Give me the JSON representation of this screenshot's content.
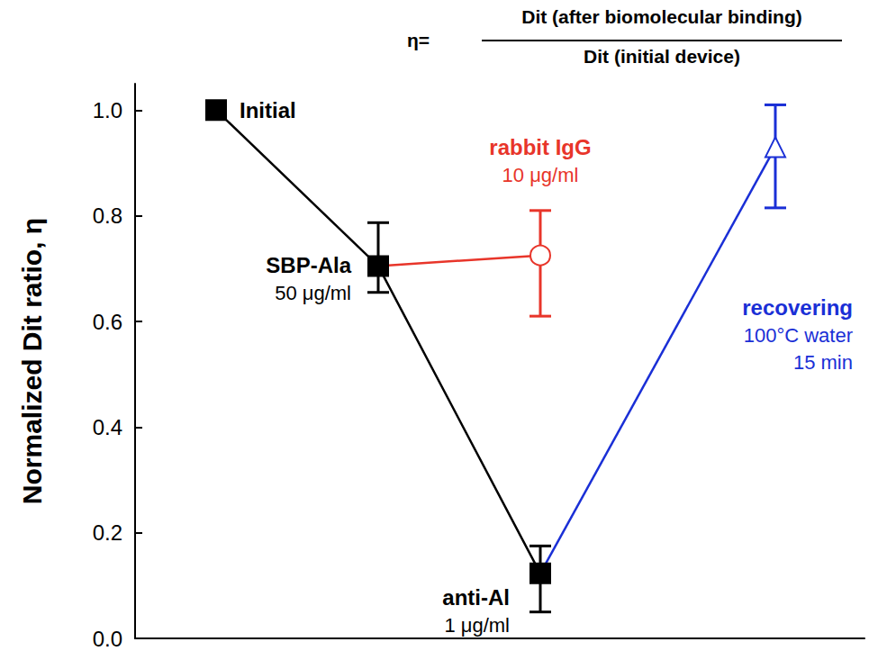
{
  "chart_data": {
    "type": "line",
    "formula": {
      "left": "η=",
      "numerator": "Dit (after biomolecular binding)",
      "denominator": "Dit (initial device)"
    },
    "y_label": "Normalized Dit ratio, η",
    "xlim": [
      0.5,
      5
    ],
    "ylim": [
      0,
      1.05
    ],
    "yticks": [
      {
        "value": 0,
        "label": "0.0"
      },
      0.2,
      0.4,
      0.6,
      0.8,
      {
        "value": 1,
        "label": "1.0"
      }
    ],
    "tick_labels": "y",
    "grid": false,
    "series": [
      {
        "color": "#e8352a",
        "marker": "open_circle",
        "line_style": "solid",
        "x": [
          2,
          3
        ],
        "values": [
          0.705,
          0.725
        ],
        "error_low": [
          null,
          0.61
        ],
        "error_high": [
          null,
          0.81
        ],
        "point_labels": [
          null,
          "rabbit IgG\n10 μg/ml"
        ]
      },
      {
        "color": "#1a2fd6",
        "marker": "open_triangle",
        "line_style": "solid",
        "x": [
          3,
          4.45
        ],
        "values": [
          0.123,
          0.93
        ],
        "error_low": [
          null,
          0.815
        ],
        "error_high": [
          null,
          1.01
        ],
        "point_labels": [
          null,
          "recovering\n100°C water\n15 min"
        ]
      },
      {
        "color": "#000000",
        "marker": "square",
        "line_style": "solid",
        "x": [
          1,
          2,
          3
        ],
        "values": [
          1.0,
          0.705,
          0.123
        ],
        "error_low": [
          null,
          0.655,
          0.05
        ],
        "error_high": [
          null,
          0.787,
          0.175
        ],
        "point_labels": [
          "Initial",
          "SBP-Ala\n50 μg/ml",
          "anti-Al\n1 μg/ml"
        ]
      }
    ]
  }
}
